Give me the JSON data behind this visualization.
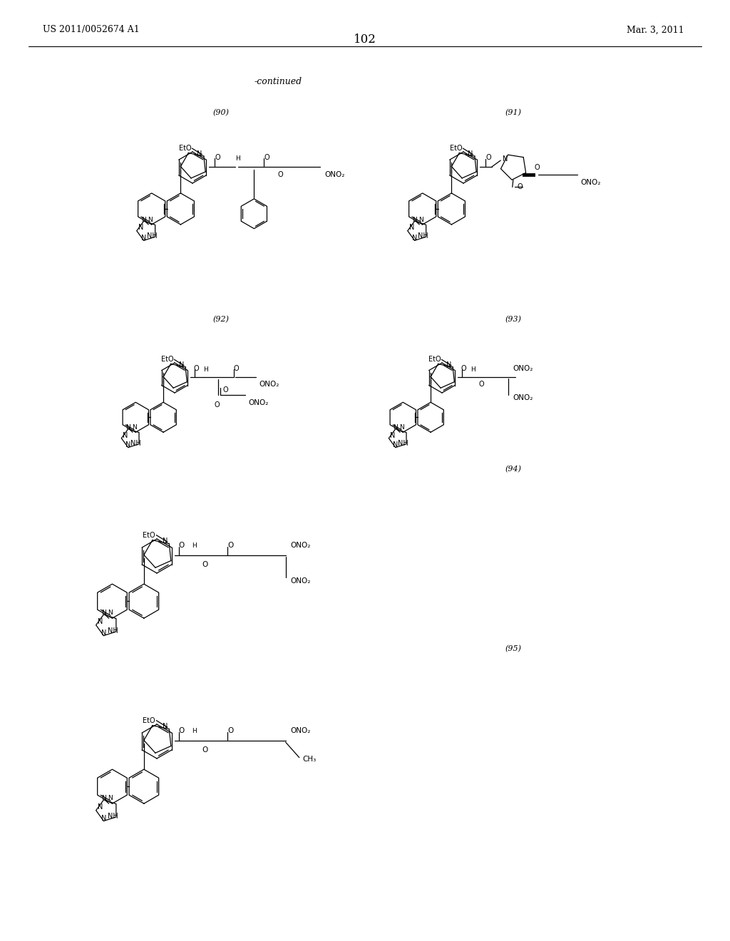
{
  "background_color": "#ffffff",
  "page_number": "102",
  "left_header": "US 2011/0052674 A1",
  "right_header": "Mar. 3, 2011",
  "continued_text": "-continued",
  "label_90": "(90)",
  "label_91": "(91)",
  "label_92": "(92)",
  "label_93": "(93)",
  "label_94": "(94)",
  "label_95": "(95)"
}
